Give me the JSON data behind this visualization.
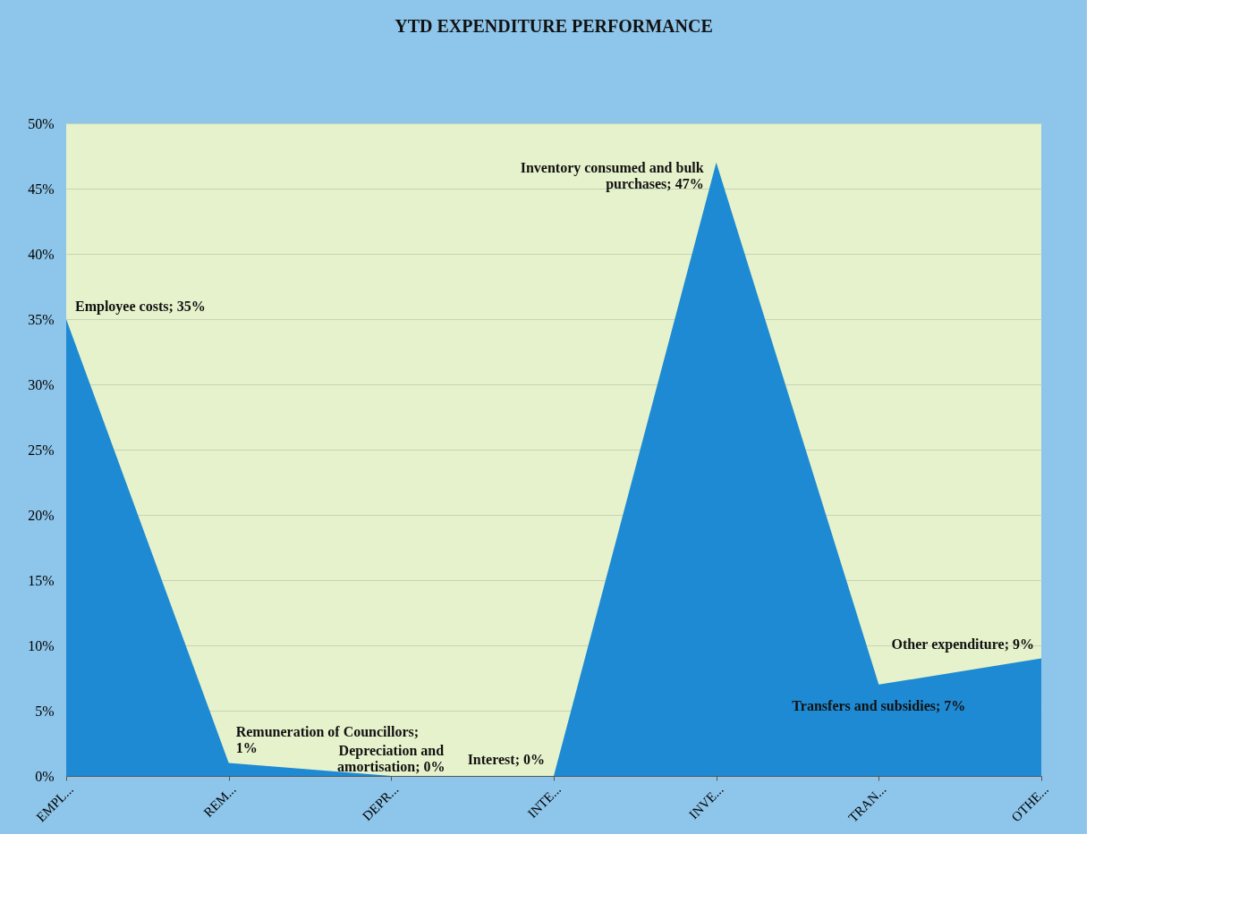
{
  "chart_data": {
    "type": "area",
    "title": "YTD EXPENDITURE PERFORMANCE",
    "categories": [
      "EMPL...",
      "REM...",
      "DEPR...",
      "INTE...",
      "INVE...",
      "TRAN...",
      "OTHE..."
    ],
    "series": [
      {
        "color": "#1e8ad3",
        "values": [
          35,
          1,
          0,
          0,
          47,
          7,
          9
        ],
        "value_labels": [
          "Employee costs; 35%",
          "Remuneration of Councillors;\n1%",
          "Depreciation and\namortisation; 0%",
          "Interest; 0%",
          "Inventory consumed and bulk\npurchases; 47%",
          "Transfers and subsidies; 7%",
          "Other expenditure; 9%"
        ]
      }
    ],
    "ylim": [
      0,
      50
    ],
    "yticks": [
      {
        "value": 0,
        "label": "0%"
      },
      {
        "value": 5,
        "label": "5%"
      },
      {
        "value": 10,
        "label": "10%"
      },
      {
        "value": 15,
        "label": "15%"
      },
      {
        "value": 20,
        "label": "20%"
      },
      {
        "value": 25,
        "label": "25%"
      },
      {
        "value": 30,
        "label": "30%"
      },
      {
        "value": 35,
        "label": "35%"
      },
      {
        "value": 40,
        "label": "40%"
      },
      {
        "value": 45,
        "label": "45%"
      },
      {
        "value": 50,
        "label": "50%"
      }
    ],
    "grid": "y"
  }
}
